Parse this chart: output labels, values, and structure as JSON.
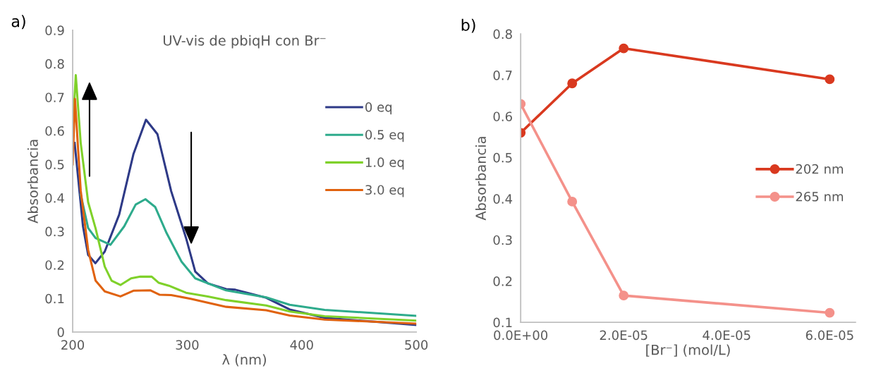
{
  "chart_data": [
    {
      "type": "line",
      "title": "UV-vis de pbiqH con Br⁻",
      "xlabel": "λ (nm)",
      "ylabel": "Absorbancia",
      "annotations": [
        "a)"
      ],
      "xlim": [
        200,
        500
      ],
      "xticks": [
        200,
        300,
        400,
        500
      ],
      "ylim": [
        0,
        0.9
      ],
      "yticks": [
        0,
        0.1,
        0.2,
        0.3,
        0.4,
        0.5,
        0.6,
        0.7,
        0.8,
        0.9
      ],
      "grid": false,
      "legend": "top right",
      "marker": "none",
      "line_style": "solid",
      "series": [
        {
          "name": "0 eq",
          "color": "#2e3a87",
          "x": [
            201.7,
            209,
            213.5,
            219.8,
            228,
            240.6,
            253,
            264,
            274,
            286,
            299,
            307,
            318,
            334,
            342,
            369,
            389.5,
            420,
            500
          ],
          "values": [
            0.564,
            0.315,
            0.23,
            0.205,
            0.24,
            0.35,
            0.53,
            0.633,
            0.59,
            0.42,
            0.28,
            0.18,
            0.145,
            0.128,
            0.126,
            0.102,
            0.067,
            0.042,
            0.021
          ]
        },
        {
          "name": "0.5 eq",
          "color": "#2eab8c",
          "x": [
            207,
            213.5,
            220,
            233,
            245,
            255,
            263.5,
            272,
            282,
            295,
            307,
            334,
            369,
            389.5,
            420,
            500
          ],
          "values": [
            0.41,
            0.31,
            0.28,
            0.26,
            0.315,
            0.38,
            0.396,
            0.373,
            0.295,
            0.21,
            0.16,
            0.124,
            0.103,
            0.081,
            0.066,
            0.048
          ]
        },
        {
          "name": "1.0 eq",
          "color": "#7fd12a",
          "x": [
            200,
            202.7,
            207,
            213.5,
            220,
            228,
            234,
            241.7,
            251,
            259,
            269,
            275,
            284,
            299,
            318,
            334,
            369,
            389.5,
            420,
            500
          ],
          "values": [
            0.6,
            0.766,
            0.564,
            0.387,
            0.309,
            0.195,
            0.153,
            0.14,
            0.16,
            0.165,
            0.165,
            0.147,
            0.138,
            0.117,
            0.106,
            0.095,
            0.079,
            0.061,
            0.047,
            0.034
          ]
        },
        {
          "name": "3.0 eq",
          "color": "#e0620f",
          "x": [
            200,
            202,
            207,
            213.5,
            220,
            228,
            241.7,
            253,
            268,
            276,
            286,
            303,
            334,
            369,
            389.5,
            420,
            500
          ],
          "values": [
            0.5,
            0.695,
            0.422,
            0.245,
            0.153,
            0.121,
            0.106,
            0.123,
            0.124,
            0.111,
            0.11,
            0.099,
            0.075,
            0.065,
            0.049,
            0.037,
            0.025
          ]
        }
      ]
    },
    {
      "type": "line",
      "xlabel": "[Br⁻] (mol/L)",
      "ylabel": "Absorbancia",
      "annotations": [
        "b)"
      ],
      "xlim": [
        0,
        6.5e-05
      ],
      "xticks": [
        {
          "value": 0,
          "label": "0.0E+00"
        },
        {
          "value": 2e-05,
          "label": "2.0E-05"
        },
        {
          "value": 4e-05,
          "label": "4.0E-05"
        },
        {
          "value": 6e-05,
          "label": "6.0E-05"
        }
      ],
      "ylim": [
        0.1,
        0.8
      ],
      "yticks": [
        0.1,
        0.2,
        0.3,
        0.4,
        0.5,
        0.6,
        0.7,
        0.8
      ],
      "grid": false,
      "legend": "right",
      "marker": "circle",
      "line_style": "solid",
      "x": [
        0,
        1e-05,
        2e-05,
        6e-05
      ],
      "series": [
        {
          "name": "202 nm",
          "color": "#d9391f",
          "values": [
            0.56,
            0.68,
            0.765,
            0.69
          ]
        },
        {
          "name": "265 nm",
          "color": "#f4918a",
          "values": [
            0.63,
            0.393,
            0.165,
            0.123
          ]
        }
      ]
    }
  ]
}
